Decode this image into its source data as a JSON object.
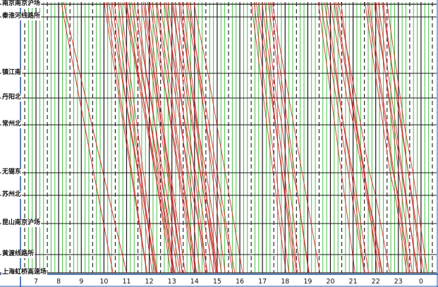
{
  "diagram": {
    "type": "train-timetable",
    "stations": [
      "南京南京沪场",
      "秦淮河线路所",
      "镇江南",
      "丹阳北",
      "常州北",
      "无锡东",
      "苏州北",
      "昆山南京沪场",
      "黄渡线路所",
      "上海虹桥高速场"
    ],
    "hour_labels": [
      "7",
      "8",
      "9",
      "10",
      "11",
      "12",
      "13",
      "14",
      "15",
      "16",
      "17",
      "18",
      "19",
      "20",
      "21",
      "22",
      "23",
      "0"
    ],
    "colors": {
      "hour_line": "#1a1a1a",
      "half_hour_line": "#1a1a1a",
      "ten_minute_line": "#33bb33",
      "station_line": "#1a1a1a",
      "train_line": "#cc2222",
      "axis_line": "#2255aa"
    },
    "wave_hours": [
      10,
      11,
      12,
      13,
      16.5,
      19.5,
      21.5
    ]
  }
}
